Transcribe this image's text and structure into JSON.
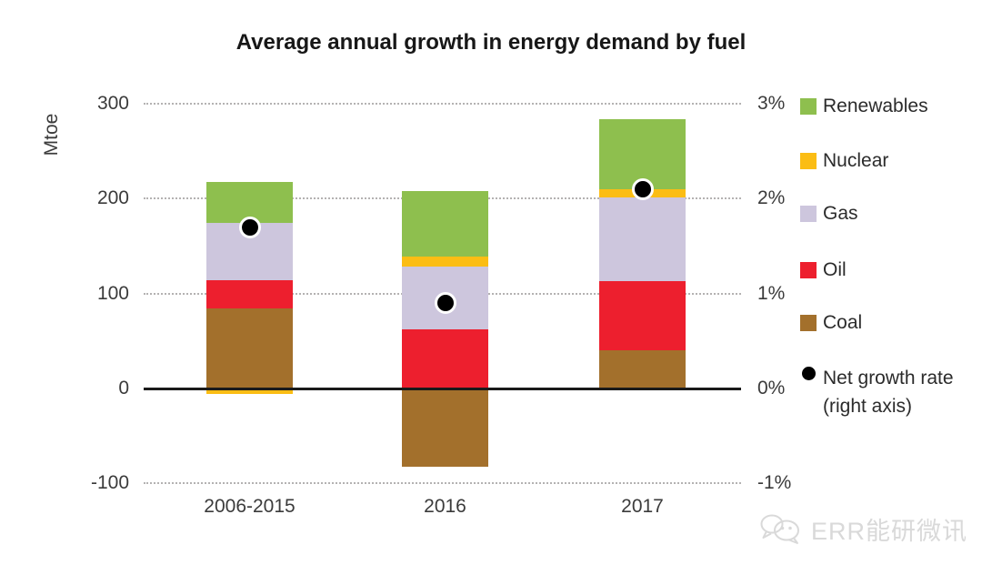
{
  "title": "Average annual growth in energy demand by fuel",
  "watermark": {
    "icon": "wechat-icon",
    "text": "ERR能研微讯"
  },
  "chart_data": {
    "type": "bar",
    "stacked": true,
    "title": "Average annual growth in energy demand by fuel",
    "xlabel": "",
    "ylabel": "Mtoe",
    "grid": true,
    "legend_position": "right",
    "categories": [
      "2006-2015",
      "2016",
      "2017"
    ],
    "series": [
      {
        "name": "Coal",
        "color": "#a3702c",
        "values": [
          84,
          -82,
          40
        ]
      },
      {
        "name": "Oil",
        "color": "#ed1f2e",
        "values": [
          30,
          62,
          73
        ]
      },
      {
        "name": "Gas",
        "color": "#cdc6dd",
        "values": [
          60,
          66,
          88
        ]
      },
      {
        "name": "Nuclear",
        "color": "#fbbd14",
        "values": [
          -6,
          11,
          9
        ]
      },
      {
        "name": "Renewables",
        "color": "#8ebf4e",
        "values": [
          43,
          69,
          74
        ]
      }
    ],
    "dot_series": {
      "name": "Net growth rate (right axis)",
      "color": "#000000",
      "values_pct": [
        1.7,
        0.9,
        2.1
      ]
    },
    "left_axis": {
      "unit": "Mtoe",
      "ticks": [
        300,
        200,
        100,
        0,
        -100
      ],
      "range": [
        -100,
        300
      ]
    },
    "right_axis": {
      "unit": "%",
      "ticks": [
        "3%",
        "2%",
        "1%",
        "0%",
        "-1%"
      ],
      "values": [
        3,
        2,
        1,
        0,
        -1
      ],
      "range": [
        -1,
        3
      ]
    },
    "gridline_values": [
      300,
      200,
      100,
      -100
    ],
    "legend": [
      {
        "label": "Renewables",
        "type": "square",
        "color": "#8ebf4e"
      },
      {
        "label": "Nuclear",
        "type": "square",
        "color": "#fbbd14"
      },
      {
        "label": "Gas",
        "type": "square",
        "color": "#cdc6dd"
      },
      {
        "label": "Oil",
        "type": "square",
        "color": "#ed1f2e"
      },
      {
        "label": "Coal",
        "type": "square",
        "color": "#a3702c"
      },
      {
        "label": "Net growth rate",
        "label2": "(right axis)",
        "type": "dot",
        "color": "#000000"
      }
    ]
  }
}
